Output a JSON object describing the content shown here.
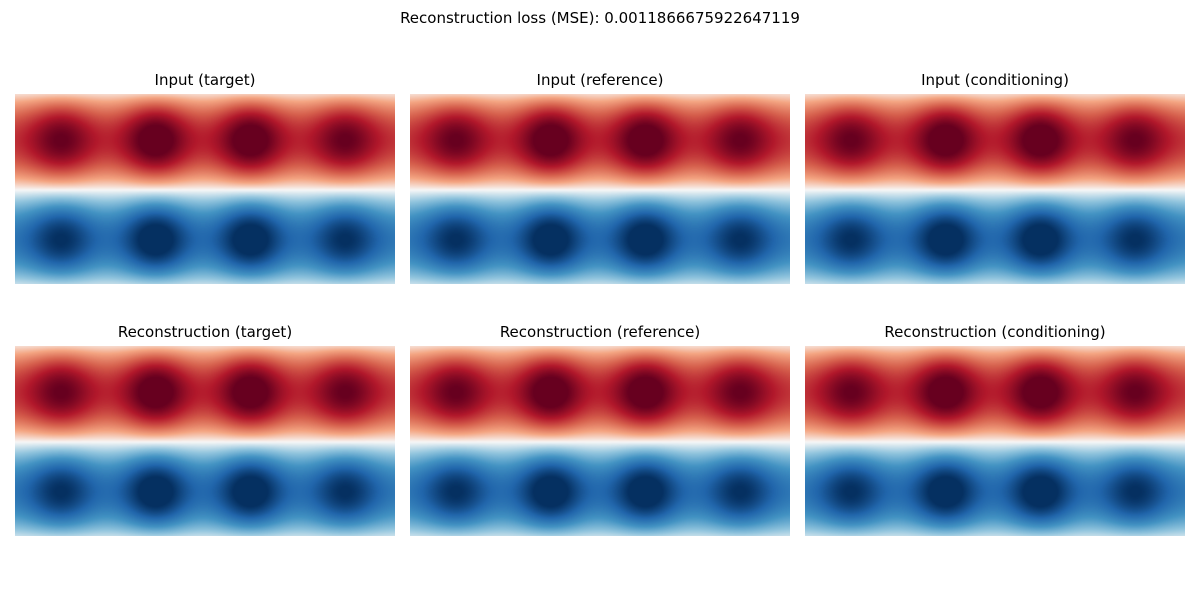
{
  "figure": {
    "title": "Reconstruction loss (MSE): 0.0011866675922647119"
  },
  "chart_data": {
    "type": "heatmap",
    "colormap": "RdBu_r",
    "value_range": [
      -1,
      1
    ],
    "axes_visible": false,
    "pattern": {
      "description": "positive band (red) on top, negative band (blue) on bottom, four gaussian-like blobs per band",
      "blob_x_positions": [
        0.12,
        0.37,
        0.62,
        0.87
      ],
      "blob_amplitudes": [
        0.78,
        1.0,
        1.0,
        0.78
      ]
    },
    "panels": [
      {
        "title": "Input (target)",
        "row": 0,
        "col": 0
      },
      {
        "title": "Input (reference)",
        "row": 0,
        "col": 1
      },
      {
        "title": "Input (conditioning)",
        "row": 0,
        "col": 2
      },
      {
        "title": "Reconstruction (target)",
        "row": 1,
        "col": 0
      },
      {
        "title": "Reconstruction (reference)",
        "row": 1,
        "col": 1
      },
      {
        "title": "Reconstruction (conditioning)",
        "row": 1,
        "col": 2
      }
    ]
  }
}
